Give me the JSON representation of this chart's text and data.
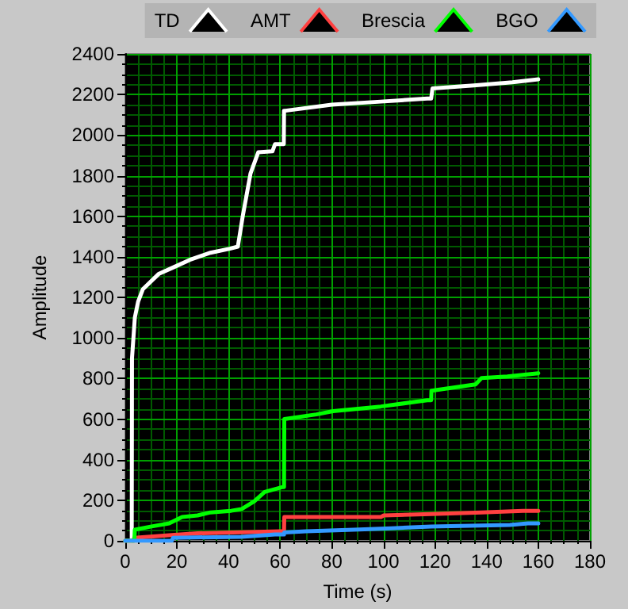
{
  "chart_data": {
    "type": "line",
    "xlabel": "Time (s)",
    "ylabel": "Amplitude",
    "xlim": [
      0,
      180
    ],
    "ylim": [
      0,
      2400
    ],
    "xticks": [
      0,
      {
        "value": 5,
        "label": null
      },
      {
        "value": 10,
        "label": null
      },
      {
        "value": 15,
        "label": null
      },
      20,
      {
        "value": 25,
        "label": null
      },
      {
        "value": 30,
        "label": null
      },
      {
        "value": 35,
        "label": null
      },
      40,
      {
        "value": 45,
        "label": null
      },
      {
        "value": 50,
        "label": null
      },
      {
        "value": 55,
        "label": null
      },
      60,
      {
        "value": 65,
        "label": null
      },
      {
        "value": 70,
        "label": null
      },
      {
        "value": 75,
        "label": null
      },
      80,
      {
        "value": 85,
        "label": null
      },
      {
        "value": 90,
        "label": null
      },
      {
        "value": 95,
        "label": null
      },
      100,
      {
        "value": 105,
        "label": null
      },
      {
        "value": 110,
        "label": null
      },
      {
        "value": 115,
        "label": null
      },
      120,
      {
        "value": 125,
        "label": null
      },
      {
        "value": 130,
        "label": null
      },
      {
        "value": 135,
        "label": null
      },
      140,
      {
        "value": 145,
        "label": null
      },
      {
        "value": 150,
        "label": null
      },
      {
        "value": 155,
        "label": null
      },
      160,
      {
        "value": 165,
        "label": null
      },
      {
        "value": 170,
        "label": null
      },
      {
        "value": 175,
        "label": null
      },
      180
    ],
    "yticks": [
      0,
      {
        "value": 50,
        "label": null
      },
      {
        "value": 100,
        "label": null
      },
      {
        "value": 150,
        "label": null
      },
      200,
      {
        "value": 250,
        "label": null
      },
      {
        "value": 300,
        "label": null
      },
      {
        "value": 350,
        "label": null
      },
      400,
      {
        "value": 450,
        "label": null
      },
      {
        "value": 500,
        "label": null
      },
      {
        "value": 550,
        "label": null
      },
      600,
      {
        "value": 650,
        "label": null
      },
      {
        "value": 700,
        "label": null
      },
      {
        "value": 750,
        "label": null
      },
      800,
      {
        "value": 850,
        "label": null
      },
      {
        "value": 900,
        "label": null
      },
      {
        "value": 950,
        "label": null
      },
      1000,
      {
        "value": 1050,
        "label": null
      },
      {
        "value": 1100,
        "label": null
      },
      {
        "value": 1150,
        "label": null
      },
      1200,
      {
        "value": 1250,
        "label": null
      },
      {
        "value": 1300,
        "label": null
      },
      {
        "value": 1350,
        "label": null
      },
      1400,
      {
        "value": 1450,
        "label": null
      },
      {
        "value": 1500,
        "label": null
      },
      {
        "value": 1550,
        "label": null
      },
      1600,
      {
        "value": 1650,
        "label": null
      },
      {
        "value": 1700,
        "label": null
      },
      {
        "value": 1750,
        "label": null
      },
      1800,
      {
        "value": 1850,
        "label": null
      },
      {
        "value": 1900,
        "label": null
      },
      {
        "value": 1950,
        "label": null
      },
      2000,
      {
        "value": 2050,
        "label": null
      },
      {
        "value": 2100,
        "label": null
      },
      {
        "value": 2150,
        "label": null
      },
      2200,
      {
        "value": 2250,
        "label": null
      },
      {
        "value": 2300,
        "label": null
      },
      {
        "value": 2350,
        "label": null
      },
      2400
    ],
    "grid": true,
    "legend": "top right",
    "line_style": "solid",
    "marker": "none",
    "series": [
      {
        "name": "TD",
        "color": "#ffffff",
        "x": [
          0,
          2.5,
          2.6,
          3,
          3.7,
          5,
          6.8,
          12.9,
          19,
          25,
          33,
          40.5,
          43.6,
          45.5,
          48.5,
          51.5,
          57,
          58,
          61.4,
          61.5,
          62,
          80,
          99,
          117,
          118.5,
          119,
          135,
          150,
          160
        ],
        "values": [
          0,
          0,
          900,
          900,
          1100,
          1180,
          1240,
          1315,
          1350,
          1385,
          1420,
          1440,
          1450,
          1600,
          1810,
          1915,
          1920,
          1955,
          1955,
          2120,
          2120,
          2150,
          2165,
          2180,
          2180,
          2230,
          2245,
          2260,
          2275
        ]
      },
      {
        "name": "AMT",
        "color": "#ff4040",
        "x": [
          0,
          3,
          3.5,
          19,
          28,
          60,
          61.5,
          61.6,
          99,
          100,
          118.5,
          138,
          154,
          160
        ],
        "values": [
          0,
          0,
          15,
          29,
          37,
          47,
          47,
          117,
          117,
          125,
          132,
          140,
          148,
          148
        ]
      },
      {
        "name": "Brescia",
        "color": "#00ff00",
        "x": [
          0,
          3.5,
          3.7,
          9.8,
          17,
          22,
          28,
          33,
          41,
          45,
          50,
          54,
          61,
          61.5,
          61.6,
          74,
          80.5,
          99,
          117,
          118.5,
          118.6,
          135.7,
          138,
          148,
          160
        ],
        "values": [
          0,
          0,
          55,
          70,
          86,
          117,
          125,
          140,
          148,
          156,
          195,
          241,
          265,
          265,
          600,
          623,
          639,
          662,
          693,
          693,
          740,
          771,
          802,
          810,
          826
        ]
      },
      {
        "name": "BGO",
        "color": "#3399ff",
        "x": [
          0,
          18,
          18.5,
          45,
          58,
          61.5,
          61.6,
          70,
          88.5,
          103,
          118.5,
          149,
          156,
          160
        ],
        "values": [
          0,
          0,
          15,
          20,
          31,
          31,
          41,
          47,
          55,
          62,
          70,
          78,
          86,
          86
        ]
      }
    ]
  }
}
